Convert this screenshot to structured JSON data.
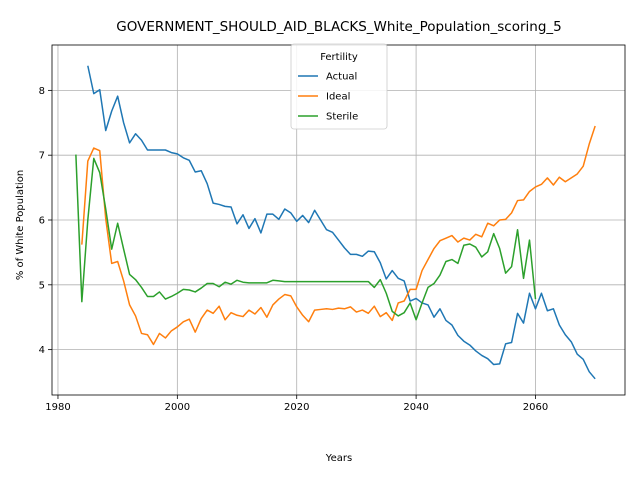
{
  "chart_data": {
    "type": "line",
    "title": "GOVERNMENT_SHOULD_AID_BLACKS_White_Population_scoring_5",
    "xlabel": "Years",
    "ylabel": "% of White Population",
    "xlim": [
      1979,
      2075
    ],
    "ylim": [
      3.3,
      8.7
    ],
    "xticks": [
      1980,
      2000,
      2020,
      2040,
      2060
    ],
    "yticks": [
      4,
      5,
      6,
      7,
      8
    ],
    "grid": true,
    "legend": {
      "title": "Fertility",
      "placement": "top-center"
    },
    "series": [
      {
        "name": "Actual",
        "color": "#1f77b4",
        "x": [
          1985,
          1986,
          1987,
          1988,
          1989,
          1990,
          1991,
          1992,
          1993,
          1994,
          1995,
          1996,
          1997,
          1998,
          1999,
          2000,
          2001,
          2002,
          2003,
          2004,
          2005,
          2006,
          2007,
          2008,
          2009,
          2010,
          2011,
          2012,
          2013,
          2014,
          2015,
          2016,
          2017,
          2018,
          2019,
          2020,
          2021,
          2022,
          2023,
          2024,
          2025,
          2026,
          2027,
          2028,
          2029,
          2030,
          2031,
          2032,
          2033,
          2034,
          2035,
          2036,
          2037,
          2038,
          2039,
          2040,
          2041,
          2042,
          2043,
          2044,
          2045,
          2046,
          2047,
          2048,
          2049,
          2050,
          2051,
          2052,
          2053,
          2054,
          2055,
          2056,
          2057,
          2058,
          2059,
          2060,
          2061,
          2062,
          2063,
          2064,
          2065,
          2066,
          2067,
          2068,
          2069,
          2070
        ],
        "y": [
          8.38,
          7.95,
          8.01,
          7.38,
          7.68,
          7.91,
          7.5,
          7.19,
          7.33,
          7.23,
          7.08,
          7.08,
          7.08,
          7.08,
          7.04,
          7.02,
          6.96,
          6.92,
          6.74,
          6.76,
          6.56,
          6.26,
          6.24,
          6.21,
          6.2,
          5.94,
          6.08,
          5.87,
          6.02,
          5.8,
          6.09,
          6.09,
          6.01,
          6.17,
          6.11,
          5.98,
          6.07,
          5.96,
          6.15,
          6.0,
          5.85,
          5.81,
          5.69,
          5.57,
          5.47,
          5.47,
          5.44,
          5.52,
          5.51,
          5.34,
          5.09,
          5.22,
          5.1,
          5.06,
          4.75,
          4.79,
          4.72,
          4.69,
          4.5,
          4.63,
          4.45,
          4.38,
          4.22,
          4.13,
          4.07,
          3.98,
          3.91,
          3.86,
          3.77,
          3.78,
          4.09,
          4.11,
          4.56,
          4.41,
          4.87,
          4.63,
          4.87,
          4.6,
          4.63,
          4.38,
          4.23,
          4.12,
          3.93,
          3.85,
          3.66,
          3.55
        ]
      },
      {
        "name": "Ideal",
        "color": "#ff7f0e",
        "x": [
          1984,
          1985,
          1986,
          1987,
          1988,
          1989,
          1990,
          1991,
          1992,
          1993,
          1994,
          1995,
          1996,
          1997,
          1998,
          1999,
          2000,
          2001,
          2002,
          2003,
          2004,
          2005,
          2006,
          2007,
          2008,
          2009,
          2010,
          2011,
          2012,
          2013,
          2014,
          2015,
          2016,
          2017,
          2018,
          2019,
          2020,
          2021,
          2022,
          2023,
          2024,
          2025,
          2026,
          2027,
          2028,
          2029,
          2030,
          2031,
          2032,
          2033,
          2034,
          2035,
          2036,
          2037,
          2038,
          2039,
          2040,
          2041,
          2042,
          2043,
          2044,
          2045,
          2046,
          2047,
          2048,
          2049,
          2050,
          2051,
          2052,
          2053,
          2054,
          2055,
          2056,
          2057,
          2058,
          2059,
          2060,
          2061,
          2062,
          2063,
          2064,
          2065,
          2066,
          2067,
          2068,
          2069,
          2070
        ],
        "y": [
          5.62,
          6.91,
          7.11,
          7.07,
          6.02,
          5.33,
          5.36,
          5.06,
          4.69,
          4.52,
          4.25,
          4.23,
          4.08,
          4.25,
          4.18,
          4.29,
          4.35,
          4.43,
          4.47,
          4.27,
          4.48,
          4.61,
          4.56,
          4.67,
          4.46,
          4.57,
          4.53,
          4.51,
          4.61,
          4.55,
          4.65,
          4.5,
          4.69,
          4.78,
          4.85,
          4.83,
          4.66,
          4.53,
          4.43,
          4.61,
          4.62,
          4.63,
          4.62,
          4.64,
          4.63,
          4.66,
          4.58,
          4.61,
          4.56,
          4.67,
          4.51,
          4.57,
          4.45,
          4.72,
          4.75,
          4.93,
          4.93,
          5.22,
          5.39,
          5.56,
          5.68,
          5.72,
          5.76,
          5.66,
          5.72,
          5.69,
          5.78,
          5.74,
          5.95,
          5.91,
          6.0,
          6.01,
          6.11,
          6.3,
          6.31,
          6.44,
          6.51,
          6.55,
          6.65,
          6.54,
          6.66,
          6.59,
          6.65,
          6.71,
          6.83,
          7.17,
          7.45
        ]
      },
      {
        "name": "Sterile",
        "color": "#2ca02c",
        "x": [
          1983,
          1984,
          1985,
          1986,
          1987,
          1988,
          1989,
          1990,
          1991,
          1992,
          1993,
          1994,
          1995,
          1996,
          1997,
          1998,
          1999,
          2000,
          2001,
          2002,
          2003,
          2004,
          2005,
          2006,
          2007,
          2008,
          2009,
          2010,
          2011,
          2012,
          2013,
          2014,
          2015,
          2016,
          2017,
          2018,
          2019,
          2020,
          2021,
          2022,
          2023,
          2024,
          2025,
          2026,
          2027,
          2028,
          2029,
          2030,
          2031,
          2032,
          2033,
          2034,
          2035,
          2036,
          2037,
          2038,
          2039,
          2040,
          2041,
          2042,
          2043,
          2044,
          2045,
          2046,
          2047,
          2048,
          2049,
          2050,
          2051,
          2052,
          2053,
          2054,
          2055,
          2056,
          2057,
          2058,
          2059,
          2060
        ],
        "y": [
          7.01,
          4.74,
          6.0,
          6.95,
          6.73,
          6.17,
          5.55,
          5.95,
          5.55,
          5.16,
          5.08,
          4.96,
          4.82,
          4.82,
          4.89,
          4.78,
          4.82,
          4.87,
          4.93,
          4.92,
          4.89,
          4.95,
          5.02,
          5.02,
          4.97,
          5.04,
          5.01,
          5.07,
          5.04,
          5.03,
          5.03,
          5.03,
          5.03,
          5.07,
          5.06,
          5.05,
          5.05,
          5.05,
          5.05,
          5.05,
          5.05,
          5.05,
          5.05,
          5.05,
          5.05,
          5.05,
          5.05,
          5.05,
          5.05,
          5.05,
          4.96,
          5.08,
          4.87,
          4.59,
          4.52,
          4.57,
          4.72,
          4.46,
          4.72,
          4.96,
          5.02,
          5.15,
          5.36,
          5.39,
          5.33,
          5.61,
          5.63,
          5.58,
          5.43,
          5.51,
          5.79,
          5.56,
          5.18,
          5.28,
          5.85,
          5.1,
          5.69,
          4.78
        ]
      }
    ]
  }
}
